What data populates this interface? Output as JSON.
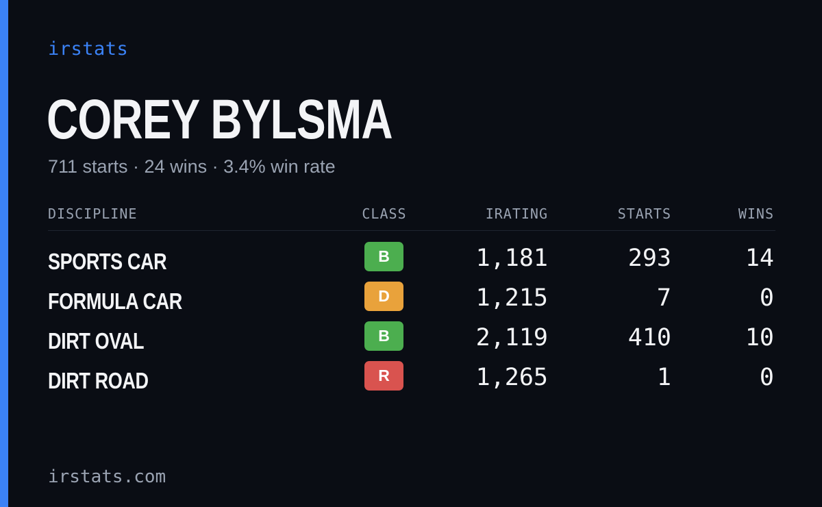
{
  "brand": "irstats",
  "driver": {
    "name": "COREY BYLSMA",
    "summary": "711 starts · 24 wins · 3.4% win rate"
  },
  "table": {
    "headers": {
      "discipline": "DISCIPLINE",
      "class": "CLASS",
      "irating": "IRATING",
      "starts": "STARTS",
      "wins": "WINS"
    },
    "rows": [
      {
        "discipline": "SPORTS CAR",
        "class": "B",
        "class_color": "#4cae4f",
        "irating": "1,181",
        "starts": "293",
        "wins": "14"
      },
      {
        "discipline": "FORMULA CAR",
        "class": "D",
        "class_color": "#e9a23b",
        "irating": "1,215",
        "starts": "7",
        "wins": "0"
      },
      {
        "discipline": "DIRT OVAL",
        "class": "B",
        "class_color": "#4cae4f",
        "irating": "2,119",
        "starts": "410",
        "wins": "10"
      },
      {
        "discipline": "DIRT ROAD",
        "class": "R",
        "class_color": "#d9534f",
        "irating": "1,265",
        "starts": "1",
        "wins": "0"
      }
    ]
  },
  "footer": "irstats.com",
  "colors": {
    "background": "#0a0d14",
    "accent": "#3b82f6",
    "text_primary": "#f3f4f6",
    "text_muted": "#9aa3b2"
  }
}
